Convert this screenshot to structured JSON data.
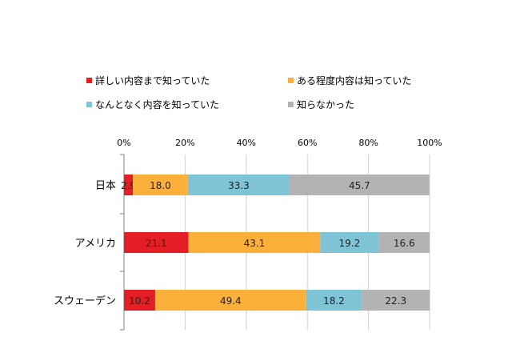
{
  "chart_data": {
    "type": "bar",
    "orientation": "horizontal",
    "stacked": true,
    "percent_stacked": true,
    "categories": [
      "日本",
      "アメリカ",
      "スウェーデン"
    ],
    "series": [
      {
        "name": "詳しい内容まで知っていた",
        "values": [
          2.9,
          21.1,
          10.2
        ],
        "color": "#e31e24"
      },
      {
        "name": "ある程度内容は知っていた",
        "values": [
          18.0,
          43.1,
          49.4
        ],
        "color": "#fbb03b"
      },
      {
        "name": "なんとなく内容を知っていた",
        "values": [
          33.3,
          19.2,
          18.2
        ],
        "color": "#7fc4d6"
      },
      {
        "name": "知らなかった",
        "values": [
          45.7,
          16.6,
          22.3
        ],
        "color": "#b3b3b3"
      }
    ],
    "xlim": [
      0,
      100
    ],
    "x_ticks": [
      "0%",
      "20%",
      "40%",
      "60%",
      "80%",
      "100%"
    ],
    "legend_position": "top",
    "grid": true,
    "data_labels": true
  }
}
